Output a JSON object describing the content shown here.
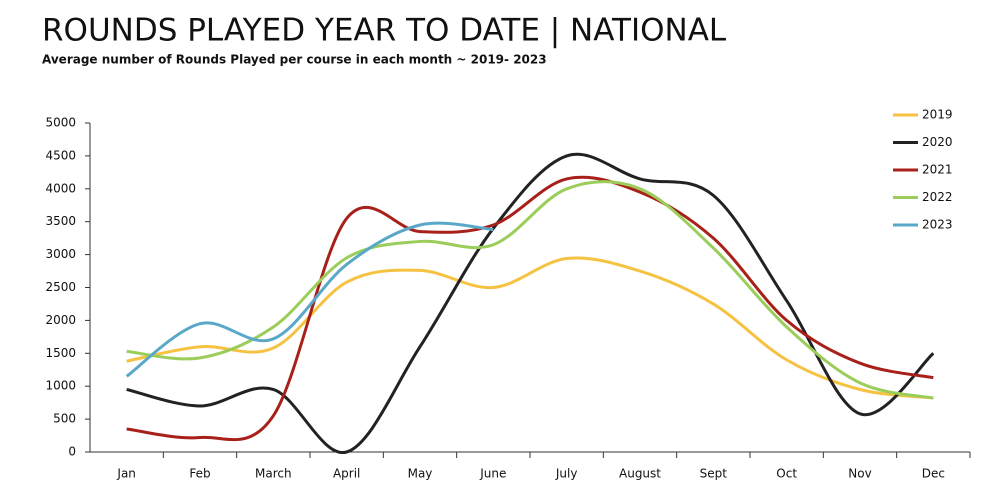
{
  "chart_data": {
    "type": "line",
    "title": "ROUNDS PLAYED YEAR TO DATE | NATIONAL",
    "subtitle": "Average number of Rounds Played per course in each month ~ 2019- 2023",
    "categories": [
      "Jan",
      "Feb",
      "March",
      "April",
      "May",
      "June",
      "July",
      "August",
      "Sept",
      "Oct",
      "Nov",
      "Dec"
    ],
    "series": [
      {
        "name": "2019",
        "color": "#f5c242",
        "values": [
          1380,
          1600,
          1580,
          2580,
          2760,
          2500,
          2940,
          2750,
          2250,
          1400,
          950,
          820
        ]
      },
      {
        "name": "2020",
        "color": "#222222",
        "values": [
          950,
          700,
          950,
          0,
          1600,
          3400,
          4500,
          4150,
          3900,
          2300,
          580,
          1500
        ]
      },
      {
        "name": "2021",
        "color": "#a8201a",
        "values": [
          350,
          220,
          550,
          3550,
          3350,
          3450,
          4150,
          3950,
          3250,
          2000,
          1350,
          1130
        ]
      },
      {
        "name": "2022",
        "color": "#9acd5a",
        "values": [
          1530,
          1430,
          1900,
          2950,
          3200,
          3150,
          4000,
          4000,
          3100,
          1900,
          1050,
          820
        ]
      },
      {
        "name": "2023",
        "color": "#5aa8c8",
        "values": [
          1150,
          1950,
          1720,
          2850,
          3450,
          3380,
          null,
          null,
          null,
          null,
          null,
          null
        ]
      }
    ],
    "ylim": [
      0,
      5000
    ],
    "yticks": [
      0,
      500,
      1000,
      1500,
      2000,
      2500,
      3000,
      3500,
      4000,
      4500,
      5000
    ],
    "legend": "top-right"
  }
}
